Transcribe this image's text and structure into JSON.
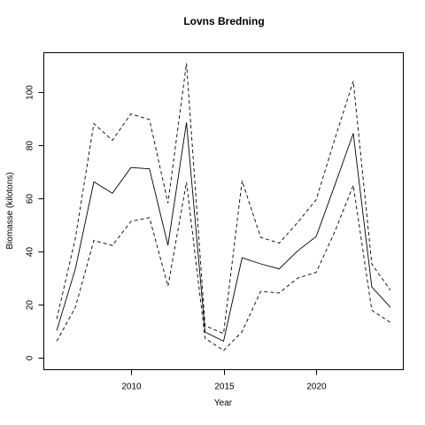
{
  "chart_data": {
    "type": "line",
    "title": "Lovns Bredning",
    "xlabel": "Year",
    "ylabel": "Biomasse (kilotons)",
    "xlim": [
      2005.3,
      2024.7
    ],
    "ylim": [
      -4.5,
      115
    ],
    "xticks": [
      "2010",
      "2015",
      "2020"
    ],
    "yticks": [
      "0",
      "20",
      "40",
      "60",
      "80",
      "100"
    ],
    "grid": false,
    "x": [
      2006,
      2007,
      2008,
      2009,
      2010,
      2011,
      2012,
      2013,
      2014,
      2015,
      2016,
      2017,
      2018,
      2019,
      2020,
      2021,
      2022,
      2023,
      2024
    ],
    "series": [
      {
        "style": "solid",
        "values": [
          10.3,
          33.5,
          66.3,
          62.0,
          71.7,
          71.2,
          42.4,
          88.7,
          9.7,
          6.2,
          37.7,
          35.4,
          33.5,
          40.3,
          45.7,
          65.0,
          84.6,
          26.7,
          19.0
        ]
      },
      {
        "style": "dashed",
        "values": [
          14.6,
          45.0,
          88.3,
          82.0,
          91.9,
          89.8,
          58.3,
          111.0,
          12.1,
          9.1,
          66.7,
          45.4,
          43.2,
          51.0,
          59.6,
          82.4,
          104.3,
          35.3,
          25.5
        ]
      },
      {
        "style": "dashed",
        "values": [
          6.2,
          19.0,
          44.2,
          42.3,
          51.4,
          52.8,
          26.9,
          66.2,
          7.3,
          2.7,
          9.8,
          25.0,
          24.4,
          30.0,
          32.2,
          47.5,
          65.0,
          17.9,
          13.3
        ]
      }
    ]
  }
}
